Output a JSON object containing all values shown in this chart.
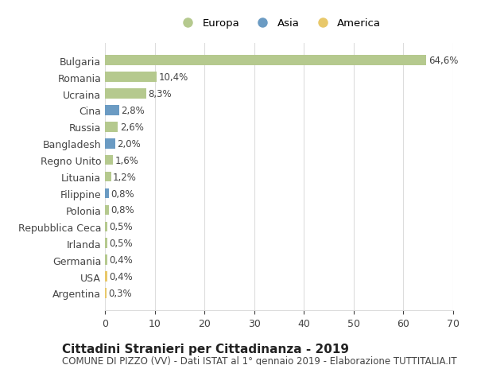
{
  "categories": [
    "Bulgaria",
    "Romania",
    "Ucraina",
    "Cina",
    "Russia",
    "Bangladesh",
    "Regno Unito",
    "Lituania",
    "Filippine",
    "Polonia",
    "Repubblica Ceca",
    "Irlanda",
    "Germania",
    "USA",
    "Argentina"
  ],
  "values": [
    64.6,
    10.4,
    8.3,
    2.8,
    2.6,
    2.0,
    1.6,
    1.2,
    0.8,
    0.8,
    0.5,
    0.5,
    0.4,
    0.4,
    0.3
  ],
  "labels": [
    "64,6%",
    "10,4%",
    "8,3%",
    "2,8%",
    "2,6%",
    "2,0%",
    "1,6%",
    "1,2%",
    "0,8%",
    "0,8%",
    "0,5%",
    "0,5%",
    "0,4%",
    "0,4%",
    "0,3%"
  ],
  "continents": [
    "Europa",
    "Europa",
    "Europa",
    "Asia",
    "Europa",
    "Asia",
    "Europa",
    "Europa",
    "Asia",
    "Europa",
    "Europa",
    "Europa",
    "Europa",
    "America",
    "America"
  ],
  "colors": {
    "Europa": "#b5c98e",
    "Asia": "#6b9bc3",
    "America": "#e8c86a"
  },
  "legend": [
    "Europa",
    "Asia",
    "America"
  ],
  "legend_colors": [
    "#b5c98e",
    "#6b9bc3",
    "#e8c86a"
  ],
  "xlim": [
    0,
    70
  ],
  "xticks": [
    0,
    10,
    20,
    30,
    40,
    50,
    60,
    70
  ],
  "title": "Cittadini Stranieri per Cittadinanza - 2019",
  "subtitle": "COMUNE DI PIZZO (VV) - Dati ISTAT al 1° gennaio 2019 - Elaborazione TUTTITALIA.IT",
  "bg_color": "#ffffff",
  "grid_color": "#dddddd",
  "bar_height": 0.6,
  "label_fontsize": 8.5,
  "ytick_fontsize": 9,
  "xtick_fontsize": 9,
  "title_fontsize": 11,
  "subtitle_fontsize": 8.5
}
